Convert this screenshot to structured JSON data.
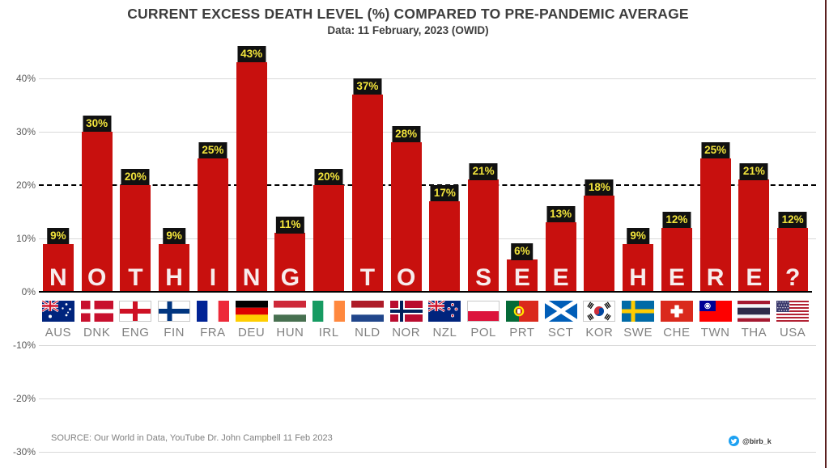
{
  "page": {
    "title": "CURRENT EXCESS DEATH LEVEL (%) COMPARED TO PRE-PANDEMIC AVERAGE",
    "subtitle": "Data: 11 February, 2023 (OWID)",
    "source": "SOURCE: Our World in Data, YouTube Dr. John Campbell 11 Feb 2023",
    "watermark": {
      "handle": "@birb_k",
      "icon": "twitter-bird-icon"
    }
  },
  "colors": {
    "bar": "#c8100e",
    "value_label_bg": "#111111",
    "value_label_text": "#f2e43c",
    "bar_letter": "#fafafa",
    "gridline": "#d9d9d9",
    "reference_line": "#000000",
    "axis_line": "#000000",
    "tick_label": "#595959",
    "country_label": "#808080",
    "title_text": "#3d3d3d",
    "source_text": "#808080",
    "twitter_blue": "#1da1f2",
    "right_border": "#5a2020"
  },
  "chart_data": {
    "type": "bar",
    "title": "CURRENT EXCESS DEATH LEVEL (%) COMPARED TO PRE-PANDEMIC AVERAGE",
    "subtitle": "Data: 11 February, 2023 (OWID)",
    "xlabel": "",
    "ylabel": "",
    "unit": "%",
    "ylim": [
      -30,
      45
    ],
    "grid": true,
    "legend": false,
    "ytick_values": [
      40,
      30,
      20,
      10,
      0,
      -10,
      -20,
      -30
    ],
    "ytick_labels": [
      "40%",
      "30%",
      "20%",
      "10%",
      "0%",
      "-10%",
      "-20%",
      "-30%"
    ],
    "reference_line_value": 20,
    "categories": [
      "AUS",
      "DNK",
      "ENG",
      "FIN",
      "FRA",
      "DEU",
      "HUN",
      "IRL",
      "NLD",
      "NOR",
      "NZL",
      "POL",
      "PRT",
      "SCT",
      "KOR",
      "SWE",
      "CHE",
      "TWN",
      "THA",
      "USA"
    ],
    "values": [
      9,
      30,
      20,
      9,
      25,
      43,
      11,
      20,
      37,
      28,
      17,
      21,
      6,
      13,
      18,
      9,
      12,
      25,
      21,
      12
    ],
    "value_labels": [
      "9%",
      "30%",
      "20%",
      "9%",
      "25%",
      "43%",
      "11%",
      "20%",
      "37%",
      "28%",
      "17%",
      "21%",
      "6%",
      "13%",
      "18%",
      "9%",
      "12%",
      "25%",
      "21%",
      "12%"
    ],
    "bar_letters": [
      "N",
      "O",
      "T",
      "H",
      "I",
      "N",
      "G",
      "",
      "T",
      "O",
      "",
      "S",
      "E",
      "E",
      "",
      "H",
      "E",
      "R",
      "E",
      "?"
    ],
    "overlay_message": "NOTHING TO SEE HERE ?",
    "flags": [
      "aus",
      "dnk",
      "eng",
      "fin",
      "fra",
      "deu",
      "hun",
      "irl",
      "nld",
      "nor",
      "nzl",
      "pol",
      "prt",
      "sct",
      "kor",
      "swe",
      "che",
      "twn",
      "tha",
      "usa"
    ]
  }
}
